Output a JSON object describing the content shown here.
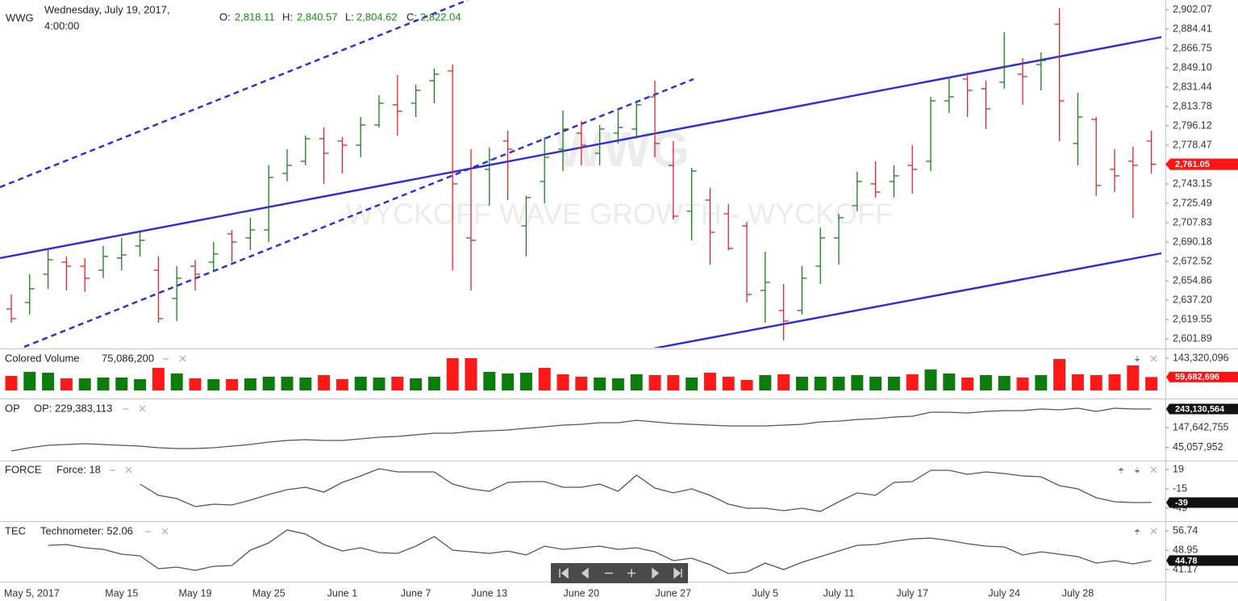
{
  "header": {
    "symbol": "WWG",
    "date": "Wednesday, July 19, 2017,",
    "time": "4:00:00",
    "ohlc": [
      {
        "label": "O:",
        "value": "2,818.11"
      },
      {
        "label": "H:",
        "value": "2,840.57"
      },
      {
        "label": "L:",
        "value": "2,804.62"
      },
      {
        "label": "C:",
        "value": "2,822.04"
      }
    ]
  },
  "watermark": {
    "symbol": "WWG",
    "name": "WYCKOFF WAVE GROWTH - WYCKOFF"
  },
  "chart_data": [
    {
      "type": "ohlc",
      "categories": [
        "May 5, 2017",
        null,
        null,
        null,
        null,
        null,
        "May 15",
        null,
        null,
        null,
        "May 19",
        null,
        null,
        null,
        "May 25",
        null,
        null,
        null,
        "June 1",
        null,
        null,
        null,
        "June 7",
        null,
        null,
        null,
        "June 13",
        null,
        null,
        null,
        null,
        "June 20",
        null,
        null,
        null,
        null,
        "June 27",
        null,
        null,
        null,
        null,
        "July 5",
        null,
        null,
        null,
        "July 11",
        null,
        null,
        null,
        "July 17",
        null,
        null,
        null,
        null,
        "July 24",
        null,
        null,
        null,
        "July 28",
        null,
        null,
        null,
        null
      ],
      "open": [
        2629.1,
        2635.0,
        2660.8,
        2671.8,
        2668.1,
        2664.4,
        2675.5,
        2686.5,
        2664.4,
        2638.7,
        2668.1,
        2671.8,
        2697.6,
        2693.9,
        2701.2,
        2752.7,
        2763.8,
        2784.4,
        2782.2,
        2778.5,
        2796.9,
        2815.3,
        2816.7,
        2837.3,
        2846.2,
        2693.9,
        2756.4,
        2782.2,
        2704.9,
        2745.4,
        2774.8,
        2789.5,
        2771.1,
        2789.5,
        2793.2,
        2822.6,
        2760.1,
        2718.2,
        2728.4,
        2715.9,
        2704.9,
        2646.0,
        2627.7,
        2627.7,
        2668.1,
        2693.9,
        2723.3,
        2743.2,
        2745.4,
        2760.1,
        2763.8,
        2818.9,
        2838.8,
        2830.0,
        2835.9,
        2843.2,
        2852.0,
        2888.8,
        2780.0,
        2802.0,
        2756.4,
        2763.8,
        2782.2
      ],
      "high": [
        2642.4,
        2660.8,
        2682.8,
        2677.0,
        2675.5,
        2686.5,
        2693.9,
        2699.8,
        2677.0,
        2668.1,
        2674.0,
        2690.2,
        2701.2,
        2712.3,
        2760.1,
        2774.8,
        2787.3,
        2794.7,
        2785.8,
        2804.2,
        2824.1,
        2842.5,
        2833.7,
        2848.4,
        2852.0,
        2774.8,
        2776.3,
        2791.7,
        2732.1,
        2785.8,
        2810.1,
        2800.5,
        2796.9,
        2811.6,
        2818.9,
        2837.3,
        2782.2,
        2757.9,
        2739.5,
        2724.8,
        2708.6,
        2681.4,
        2651.9,
        2668.1,
        2703.4,
        2715.9,
        2754.2,
        2763.8,
        2760.1,
        2778.5,
        2822.6,
        2841.0,
        2844.7,
        2837.3,
        2881.5,
        2857.9,
        2863.1,
        2903.5,
        2826.3,
        2804.2,
        2774.8,
        2777.0,
        2791.7
      ],
      "low": [
        2616.6,
        2624.0,
        2647.5,
        2646.0,
        2644.6,
        2657.1,
        2664.4,
        2677.0,
        2616.6,
        2618.1,
        2646.0,
        2664.4,
        2671.8,
        2682.8,
        2690.2,
        2745.4,
        2760.1,
        2743.2,
        2752.7,
        2767.4,
        2794.7,
        2787.3,
        2804.2,
        2816.7,
        2664.4,
        2646.0,
        2723.3,
        2728.4,
        2677.0,
        2725.5,
        2754.9,
        2760.1,
        2760.1,
        2780.0,
        2784.4,
        2767.4,
        2710.8,
        2691.7,
        2669.6,
        2682.8,
        2635.0,
        2616.6,
        2600.4,
        2624.0,
        2651.9,
        2669.6,
        2718.2,
        2730.7,
        2730.7,
        2734.3,
        2754.9,
        2807.9,
        2804.2,
        2793.2,
        2830.0,
        2815.3,
        2828.5,
        2782.2,
        2760.1,
        2732.1,
        2735.8,
        2712.3,
        2752.7
      ],
      "close": [
        2620.3,
        2647.5,
        2674.0,
        2668.1,
        2657.1,
        2677.0,
        2678.4,
        2691.7,
        2620.3,
        2657.1,
        2660.8,
        2679.2,
        2690.2,
        2701.2,
        2749.0,
        2760.1,
        2784.4,
        2771.1,
        2778.5,
        2796.9,
        2816.7,
        2809.4,
        2828.5,
        2843.2,
        2743.2,
        2691.7,
        2765.2,
        2774.8,
        2730.7,
        2767.4,
        2793.2,
        2778.5,
        2793.2,
        2794.7,
        2815.3,
        2780.0,
        2713.7,
        2754.9,
        2699.0,
        2684.3,
        2642.4,
        2653.4,
        2618.1,
        2657.1,
        2693.9,
        2712.3,
        2745.4,
        2735.8,
        2750.5,
        2756.4,
        2818.9,
        2822.6,
        2828.5,
        2811.6,
        2850.6,
        2841.0,
        2855.7,
        2818.9,
        2804.2,
        2741.7,
        2750.5,
        2760.1,
        2761.05
      ],
      "up_color": "#1e7d1e",
      "down_color": "#e4252b",
      "ylim": [
        2594.5,
        2910.9
      ],
      "yticks": [
        {
          "value": 2902.07,
          "label": "2,902.07"
        },
        {
          "value": 2884.41,
          "label": "2,884.41"
        },
        {
          "value": 2866.75,
          "label": "2,866.75"
        },
        {
          "value": 2849.1,
          "label": "2,849.10"
        },
        {
          "value": 2831.44,
          "label": "2,831.44"
        },
        {
          "value": 2813.78,
          "label": "2,813.78"
        },
        {
          "value": 2796.12,
          "label": "2,796.12"
        },
        {
          "value": 2778.47,
          "label": "2,778.47"
        },
        {
          "value": 2743.15,
          "label": "2,743.15"
        },
        {
          "value": 2725.49,
          "label": "2,725.49"
        },
        {
          "value": 2707.83,
          "label": "2,707.83"
        },
        {
          "value": 2690.18,
          "label": "2,690.18"
        },
        {
          "value": 2672.52,
          "label": "2,672.52"
        },
        {
          "value": 2654.86,
          "label": "2,654.86"
        },
        {
          "value": 2637.2,
          "label": "2,637.20"
        },
        {
          "value": 2619.55,
          "label": "2,619.55"
        },
        {
          "value": 2601.89,
          "label": "2,601.89"
        }
      ],
      "current": {
        "value": 2761.05,
        "label": "2,761.05",
        "color": "#ff1414"
      }
    },
    {
      "type": "bar",
      "title": "Colored Volume",
      "legend": "75,086,200",
      "values": [
        64500000,
        82400000,
        78800000,
        53700000,
        53700000,
        57300000,
        57300000,
        50200000,
        100300000,
        75200000,
        53700000,
        50200000,
        50200000,
        53700000,
        60900000,
        60900000,
        57300000,
        68100000,
        50200000,
        60900000,
        57300000,
        60900000,
        53700000,
        60900000,
        143300000,
        143300000,
        82400000,
        75200000,
        78800000,
        100300000,
        71700000,
        60900000,
        57300000,
        53700000,
        71700000,
        68100000,
        68100000,
        57300000,
        78800000,
        60900000,
        46600000,
        68100000,
        71700000,
        60900000,
        60900000,
        60900000,
        68100000,
        60900000,
        60900000,
        71700000,
        93200000,
        75200000,
        57300000,
        68100000,
        64500000,
        57300000,
        68100000,
        139700000,
        71700000,
        68100000,
        71700000,
        111100000,
        59682696
      ],
      "colors": [
        "#ff1a1a",
        "#0c7d0c",
        "#0c7d0c",
        "#ff1a1a",
        "#0c7d0c",
        "#0c7d0c",
        "#0c7d0c",
        "#0c7d0c",
        "#ff1a1a",
        "#0c7d0c",
        "#ff1a1a",
        "#0c7d0c",
        "#ff1a1a",
        "#0c7d0c",
        "#0c7d0c",
        "#0c7d0c",
        "#0c7d0c",
        "#ff1a1a",
        "#ff1a1a",
        "#0c7d0c",
        "#0c7d0c",
        "#ff1a1a",
        "#0c7d0c",
        "#0c7d0c",
        "#ff1a1a",
        "#ff1a1a",
        "#0c7d0c",
        "#0c7d0c",
        "#0c7d0c",
        "#ff1a1a",
        "#ff1a1a",
        "#ff1a1a",
        "#0c7d0c",
        "#0c7d0c",
        "#0c7d0c",
        "#ff1a1a",
        "#ff1a1a",
        "#0c7d0c",
        "#ff1a1a",
        "#ff1a1a",
        "#ff1a1a",
        "#0c7d0c",
        "#ff1a1a",
        "#0c7d0c",
        "#0c7d0c",
        "#0c7d0c",
        "#0c7d0c",
        "#0c7d0c",
        "#0c7d0c",
        "#ff1a1a",
        "#0c7d0c",
        "#0c7d0c",
        "#ff1a1a",
        "#0c7d0c",
        "#0c7d0c",
        "#ff1a1a",
        "#0c7d0c",
        "#ff1a1a",
        "#ff1a1a",
        "#ff1a1a",
        "#ff1a1a",
        "#ff1a1a",
        "#ff1a1a"
      ],
      "ylim": [
        0,
        175560000
      ],
      "yticks": [
        {
          "value": 143320096,
          "label": "143,320,096"
        }
      ],
      "current": {
        "value": 59682696,
        "label": "59,682,696",
        "color": "#ff1414"
      }
    },
    {
      "type": "line",
      "title": "OP",
      "legend": "OP: 229,383,113",
      "color": "#555555",
      "values": [
        27430000,
        44000000,
        56500000,
        60600000,
        64800000,
        60600000,
        56500000,
        52300000,
        44000000,
        39800000,
        39800000,
        44000000,
        52300000,
        60600000,
        73000000,
        81300000,
        85500000,
        81300000,
        81300000,
        89600000,
        97900000,
        102100000,
        110400000,
        118700000,
        118700000,
        127000000,
        131100000,
        135300000,
        143600000,
        151900000,
        160200000,
        164300000,
        172600000,
        172600000,
        185100000,
        176800000,
        168500000,
        164300000,
        160200000,
        156000000,
        156000000,
        156000000,
        160200000,
        164300000,
        176800000,
        180900000,
        189200000,
        193300000,
        201700000,
        205800000,
        226500000,
        226500000,
        222400000,
        230700000,
        234800000,
        234800000,
        243100000,
        239000000,
        247300000,
        230700000,
        247300000,
        243100000,
        243130564
      ],
      "ylim": [
        -18200000,
        284600000
      ],
      "yticks": [
        {
          "value": 147642755,
          "label": "147,642,755"
        },
        {
          "value": 45057952,
          "label": "45,057,952"
        }
      ],
      "current": {
        "value": 243130564,
        "label": "243,130,564",
        "color": "#111111"
      }
    },
    {
      "type": "line",
      "title": "FORCE",
      "legend": "Force: 18",
      "color": "#555555",
      "values": [
        null,
        null,
        null,
        null,
        null,
        null,
        null,
        -6.5,
        -26.3,
        -32.0,
        -46.2,
        -41.9,
        -43.3,
        -34.8,
        -24.9,
        -16.4,
        -12.2,
        -20.7,
        -3.7,
        7.7,
        20.4,
        14.8,
        14.8,
        14.8,
        -6.5,
        -15.0,
        -19.3,
        -3.7,
        -2.3,
        -2.3,
        -12.2,
        -12.2,
        -6.5,
        -19.3,
        9.1,
        -13.6,
        -22.1,
        -15.0,
        -26.3,
        -41.9,
        -49.0,
        -49.0,
        -53.3,
        -49.0,
        -54.7,
        -37.7,
        -22.1,
        -26.3,
        -3.7,
        -2.3,
        17.6,
        17.6,
        10.5,
        14.8,
        11.9,
        7.7,
        6.2,
        -9.3,
        -15.0,
        -30.6,
        -37.7,
        -39.1,
        -39
      ],
      "ylim": [
        -70.25,
        31.75
      ],
      "yticks": [
        19,
        -15,
        -49
      ],
      "current": {
        "value": -39,
        "label": "-39",
        "color": "#111111"
      }
    },
    {
      "type": "line",
      "title": "TEC",
      "legend": "Technometer: 52.06",
      "color": "#555555",
      "values": [
        null,
        null,
        50.9,
        51.23,
        49.93,
        49.28,
        47.33,
        46.68,
        41.49,
        42.14,
        40.84,
        42.47,
        42.79,
        48.95,
        51.87,
        57.06,
        55.44,
        51.23,
        48.63,
        49.93,
        47.98,
        47.66,
        50.58,
        54.47,
        48.95,
        48.31,
        47.66,
        48.63,
        47.01,
        50.58,
        49.28,
        49.93,
        50.58,
        49.28,
        49.93,
        48.31,
        44.74,
        45.71,
        43.12,
        39.55,
        40.2,
        43.76,
        41.17,
        44.09,
        46.36,
        48.63,
        50.9,
        51.23,
        52.52,
        53.5,
        53.82,
        52.85,
        51.55,
        50.58,
        50.25,
        47.01,
        48.31,
        47.33,
        46.36,
        43.76,
        44.74,
        43.44,
        44.78
      ],
      "ylim": [
        36.63,
        59.98
      ],
      "yticks": [
        56.74,
        48.95,
        41.17
      ],
      "current": {
        "value": 44.78,
        "label": "44.78",
        "color": "#111111"
      }
    }
  ]
}
